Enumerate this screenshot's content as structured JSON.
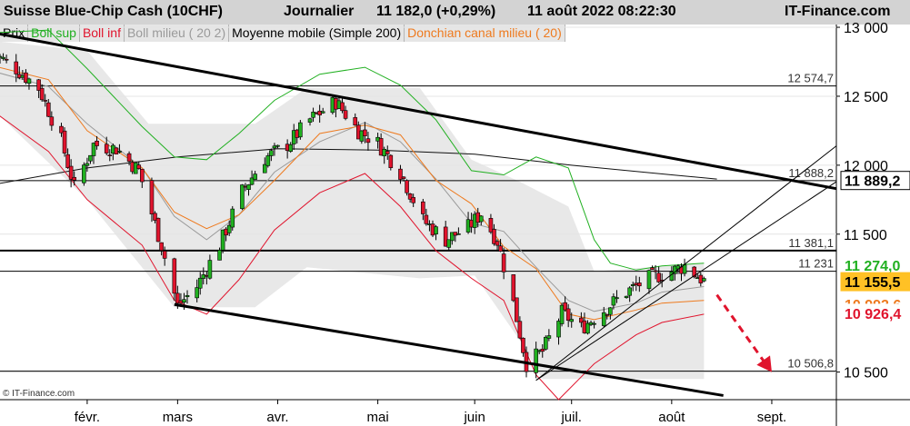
{
  "header": {
    "instrument": "Suisse Blue-Chip Cash (10CHF)",
    "period": "Journalier",
    "last_quote": "11 182,0 (+0,29%)",
    "datetime": "11 août 2022 08:22:30",
    "brand": "IT-Finance.com"
  },
  "legend": [
    {
      "label": "Prix",
      "color": "#000000"
    },
    {
      "label": "Boll sup",
      "color": "#21b021"
    },
    {
      "label": "Boll inf",
      "color": "#e0142d"
    },
    {
      "label": "Boll milieu ( 20 2)",
      "color": "#9a9a9a"
    },
    {
      "label": "Moyenne mobile (Simple 200)",
      "color": "#000000"
    },
    {
      "label": "Donchian canal milieu ( 20)",
      "color": "#ee7a1e"
    }
  ],
  "watermark": "© IT-Finance.com",
  "chart_data": {
    "type": "candlestick",
    "title": "Suisse Blue-Chip Cash (10CHF)",
    "ylim": [
      10300,
      13020
    ],
    "y_ticks": [
      {
        "value": 13000,
        "label": "13 000"
      },
      {
        "value": 12500,
        "label": "12 500"
      },
      {
        "value": 12000,
        "label": "12 000"
      },
      {
        "value": 11500,
        "label": "11 500"
      },
      {
        "value": 10500,
        "label": "10 500"
      }
    ],
    "x_ticks": [
      {
        "date": "2022-02-01",
        "label": "févr."
      },
      {
        "date": "2022-03-01",
        "label": "mars"
      },
      {
        "date": "2022-04-01",
        "label": "avr."
      },
      {
        "date": "2022-05-02",
        "label": "mai"
      },
      {
        "date": "2022-06-01",
        "label": "juin"
      },
      {
        "date": "2022-07-01",
        "label": "juil."
      },
      {
        "date": "2022-08-01",
        "label": "août"
      },
      {
        "date": "2022-09-01",
        "label": "sept."
      }
    ],
    "x_range": [
      "2022-01-05",
      "2022-09-21"
    ],
    "horizontal_levels": [
      {
        "value": 12574.7,
        "label": "12 574,7",
        "bold": false
      },
      {
        "value": 11888.2,
        "label": "11 888,2",
        "bold": false
      },
      {
        "value": 11381.1,
        "label": "11 381,1",
        "bold": true
      },
      {
        "value": 11231,
        "label": "11 231",
        "bold": false
      },
      {
        "value": 10506.8,
        "label": "10 506,8",
        "bold": false
      }
    ],
    "value_tags": [
      {
        "value": 11889.2,
        "label": "11 889,2",
        "bg": "#ffffff",
        "fg": "#000000",
        "border": "#000000"
      },
      {
        "value": 11274.0,
        "label": "11 274,0",
        "bg": "#ffffff",
        "fg": "#21b021",
        "border": "#ffffff"
      },
      {
        "value": 11155.5,
        "label": "11 155,5",
        "bg": "#ffc125",
        "fg": "#000000",
        "border": "#ffc125"
      },
      {
        "value": 10992.6,
        "label": "10 992,6",
        "bg": "#ffffff",
        "fg": "#ee7a1e",
        "border": "#ffffff"
      },
      {
        "value": 10926.4,
        "label": "10 926,4",
        "bg": "#ffffff",
        "fg": "#e0142d",
        "border": "#ffffff"
      }
    ],
    "trend_lines": [
      {
        "name": "resistance",
        "from": {
          "date": "2022-01-03",
          "value": 12960
        },
        "to": {
          "date": "2022-09-21",
          "value": 11830
        },
        "width": 3
      },
      {
        "name": "support",
        "from": {
          "date": "2022-02-28",
          "value": 10990
        },
        "to": {
          "date": "2022-08-17",
          "value": 10330
        },
        "width": 3
      },
      {
        "name": "channel-upper",
        "from": {
          "date": "2022-06-20",
          "value": 10440
        },
        "to": {
          "date": "2022-09-21",
          "value": 12140
        },
        "width": 1
      },
      {
        "name": "channel-lower",
        "from": {
          "date": "2022-06-20",
          "value": 10440
        },
        "to": {
          "date": "2022-09-21",
          "value": 11880
        },
        "width": 1
      }
    ],
    "forecast_arrow": {
      "from": {
        "date": "2022-08-15",
        "value": 11060
      },
      "to": {
        "date": "2022-09-01",
        "value": 10500
      },
      "color": "#e0142d"
    },
    "anchors": [
      [
        "2022-01-03",
        12810
      ],
      [
        "2022-01-10",
        12700
      ],
      [
        "2022-01-17",
        12560
      ],
      [
        "2022-01-24",
        12180
      ],
      [
        "2022-01-28",
        11840
      ],
      [
        "2022-02-03",
        12150
      ],
      [
        "2022-02-10",
        12120
      ],
      [
        "2022-02-17",
        11960
      ],
      [
        "2022-02-24",
        11420
      ],
      [
        "2022-03-01",
        10980
      ],
      [
        "2022-03-07",
        11120
      ],
      [
        "2022-03-14",
        11420
      ],
      [
        "2022-03-21",
        11810
      ],
      [
        "2022-03-28",
        12050
      ],
      [
        "2022-04-04",
        12150
      ],
      [
        "2022-04-11",
        12330
      ],
      [
        "2022-04-19",
        12460
      ],
      [
        "2022-04-26",
        12250
      ],
      [
        "2022-05-02",
        12160
      ],
      [
        "2022-05-09",
        11950
      ],
      [
        "2022-05-16",
        11600
      ],
      [
        "2022-05-23",
        11460
      ],
      [
        "2022-05-30",
        11550
      ],
      [
        "2022-06-03",
        11650
      ],
      [
        "2022-06-08",
        11450
      ],
      [
        "2022-06-13",
        11000
      ],
      [
        "2022-06-17",
        10560
      ],
      [
        "2022-06-22",
        10650
      ],
      [
        "2022-06-28",
        10930
      ],
      [
        "2022-07-04",
        10820
      ],
      [
        "2022-07-11",
        10950
      ],
      [
        "2022-07-18",
        11080
      ],
      [
        "2022-07-25",
        11180
      ],
      [
        "2022-08-01",
        11230
      ],
      [
        "2022-08-05",
        11270
      ],
      [
        "2022-08-11",
        11160
      ]
    ],
    "bands": {
      "boll_upper": [
        [
          "2022-01-03",
          12960
        ],
        [
          "2022-01-20",
          12980
        ],
        [
          "2022-02-01",
          12700
        ],
        [
          "2022-02-18",
          12280
        ],
        [
          "2022-02-28",
          12060
        ],
        [
          "2022-03-10",
          12040
        ],
        [
          "2022-03-20",
          12230
        ],
        [
          "2022-03-31",
          12470
        ],
        [
          "2022-04-14",
          12660
        ],
        [
          "2022-04-28",
          12710
        ],
        [
          "2022-05-09",
          12580
        ],
        [
          "2022-05-20",
          12330
        ],
        [
          "2022-05-31",
          11960
        ],
        [
          "2022-06-10",
          11930
        ],
        [
          "2022-06-20",
          12060
        ],
        [
          "2022-06-30",
          11980
        ],
        [
          "2022-07-08",
          11460
        ],
        [
          "2022-07-13",
          11290
        ],
        [
          "2022-07-21",
          11240
        ],
        [
          "2022-07-29",
          11270
        ],
        [
          "2022-08-11",
          11290
        ]
      ],
      "boll_lower": [
        [
          "2022-01-03",
          12390
        ],
        [
          "2022-01-20",
          12100
        ],
        [
          "2022-02-01",
          11750
        ],
        [
          "2022-02-18",
          11420
        ],
        [
          "2022-02-28",
          11020
        ],
        [
          "2022-03-10",
          10920
        ],
        [
          "2022-03-20",
          11170
        ],
        [
          "2022-03-31",
          11530
        ],
        [
          "2022-04-14",
          11800
        ],
        [
          "2022-04-28",
          11940
        ],
        [
          "2022-05-09",
          11700
        ],
        [
          "2022-05-20",
          11380
        ],
        [
          "2022-05-31",
          11180
        ],
        [
          "2022-06-10",
          11020
        ],
        [
          "2022-06-20",
          10480
        ],
        [
          "2022-06-27",
          10300
        ],
        [
          "2022-07-08",
          10560
        ],
        [
          "2022-07-21",
          10770
        ],
        [
          "2022-07-29",
          10860
        ],
        [
          "2022-08-11",
          10920
        ]
      ],
      "boll_middle": [
        [
          "2022-01-03",
          12680
        ],
        [
          "2022-01-20",
          12570
        ],
        [
          "2022-02-01",
          12300
        ],
        [
          "2022-02-18",
          11980
        ],
        [
          "2022-02-28",
          11630
        ],
        [
          "2022-03-10",
          11460
        ],
        [
          "2022-03-20",
          11640
        ],
        [
          "2022-03-31",
          11950
        ],
        [
          "2022-04-14",
          12170
        ],
        [
          "2022-04-28",
          12310
        ],
        [
          "2022-05-09",
          12170
        ],
        [
          "2022-05-20",
          11900
        ],
        [
          "2022-05-31",
          11580
        ],
        [
          "2022-06-10",
          11520
        ],
        [
          "2022-06-20",
          11260
        ],
        [
          "2022-06-30",
          11020
        ],
        [
          "2022-07-08",
          10940
        ],
        [
          "2022-07-21",
          11000
        ],
        [
          "2022-07-29",
          11080
        ],
        [
          "2022-08-11",
          11120
        ]
      ],
      "sma200": [
        [
          "2022-01-03",
          11860
        ],
        [
          "2022-02-01",
          11980
        ],
        [
          "2022-03-01",
          12060
        ],
        [
          "2022-04-01",
          12120
        ],
        [
          "2022-05-02",
          12110
        ],
        [
          "2022-06-01",
          12080
        ],
        [
          "2022-07-01",
          12000
        ],
        [
          "2022-08-01",
          11930
        ],
        [
          "2022-08-15",
          11900
        ]
      ],
      "donchian_mid": [
        [
          "2022-01-03",
          12720
        ],
        [
          "2022-01-20",
          12620
        ],
        [
          "2022-02-01",
          12250
        ],
        [
          "2022-02-18",
          11980
        ],
        [
          "2022-02-28",
          11660
        ],
        [
          "2022-03-10",
          11540
        ],
        [
          "2022-03-20",
          11640
        ],
        [
          "2022-03-31",
          11890
        ],
        [
          "2022-04-14",
          12230
        ],
        [
          "2022-04-28",
          12290
        ],
        [
          "2022-05-09",
          12220
        ],
        [
          "2022-05-20",
          11890
        ],
        [
          "2022-05-31",
          11720
        ],
        [
          "2022-06-10",
          11410
        ],
        [
          "2022-06-20",
          11250
        ],
        [
          "2022-06-30",
          10920
        ],
        [
          "2022-07-08",
          10880
        ],
        [
          "2022-07-21",
          10950
        ],
        [
          "2022-07-29",
          11000
        ],
        [
          "2022-08-11",
          11020
        ]
      ],
      "donchian_upper": [
        [
          "2022-01-03",
          12900
        ],
        [
          "2022-02-01",
          12830
        ],
        [
          "2022-02-20",
          12300
        ],
        [
          "2022-03-10",
          12300
        ],
        [
          "2022-03-25",
          12300
        ],
        [
          "2022-04-10",
          12560
        ],
        [
          "2022-05-15",
          12560
        ],
        [
          "2022-05-31",
          12040
        ],
        [
          "2022-06-15",
          11880
        ],
        [
          "2022-06-30",
          11700
        ],
        [
          "2022-07-08",
          11230
        ],
        [
          "2022-08-11",
          11290
        ]
      ],
      "donchian_lower": [
        [
          "2022-01-03",
          12400
        ],
        [
          "2022-02-01",
          11750
        ],
        [
          "2022-02-28",
          10970
        ],
        [
          "2022-03-25",
          10970
        ],
        [
          "2022-04-10",
          11260
        ],
        [
          "2022-05-15",
          11180
        ],
        [
          "2022-06-01",
          11200
        ],
        [
          "2022-06-15",
          10730
        ],
        [
          "2022-06-22",
          10450
        ],
        [
          "2022-07-20",
          10450
        ],
        [
          "2022-08-11",
          10450
        ]
      ]
    }
  }
}
